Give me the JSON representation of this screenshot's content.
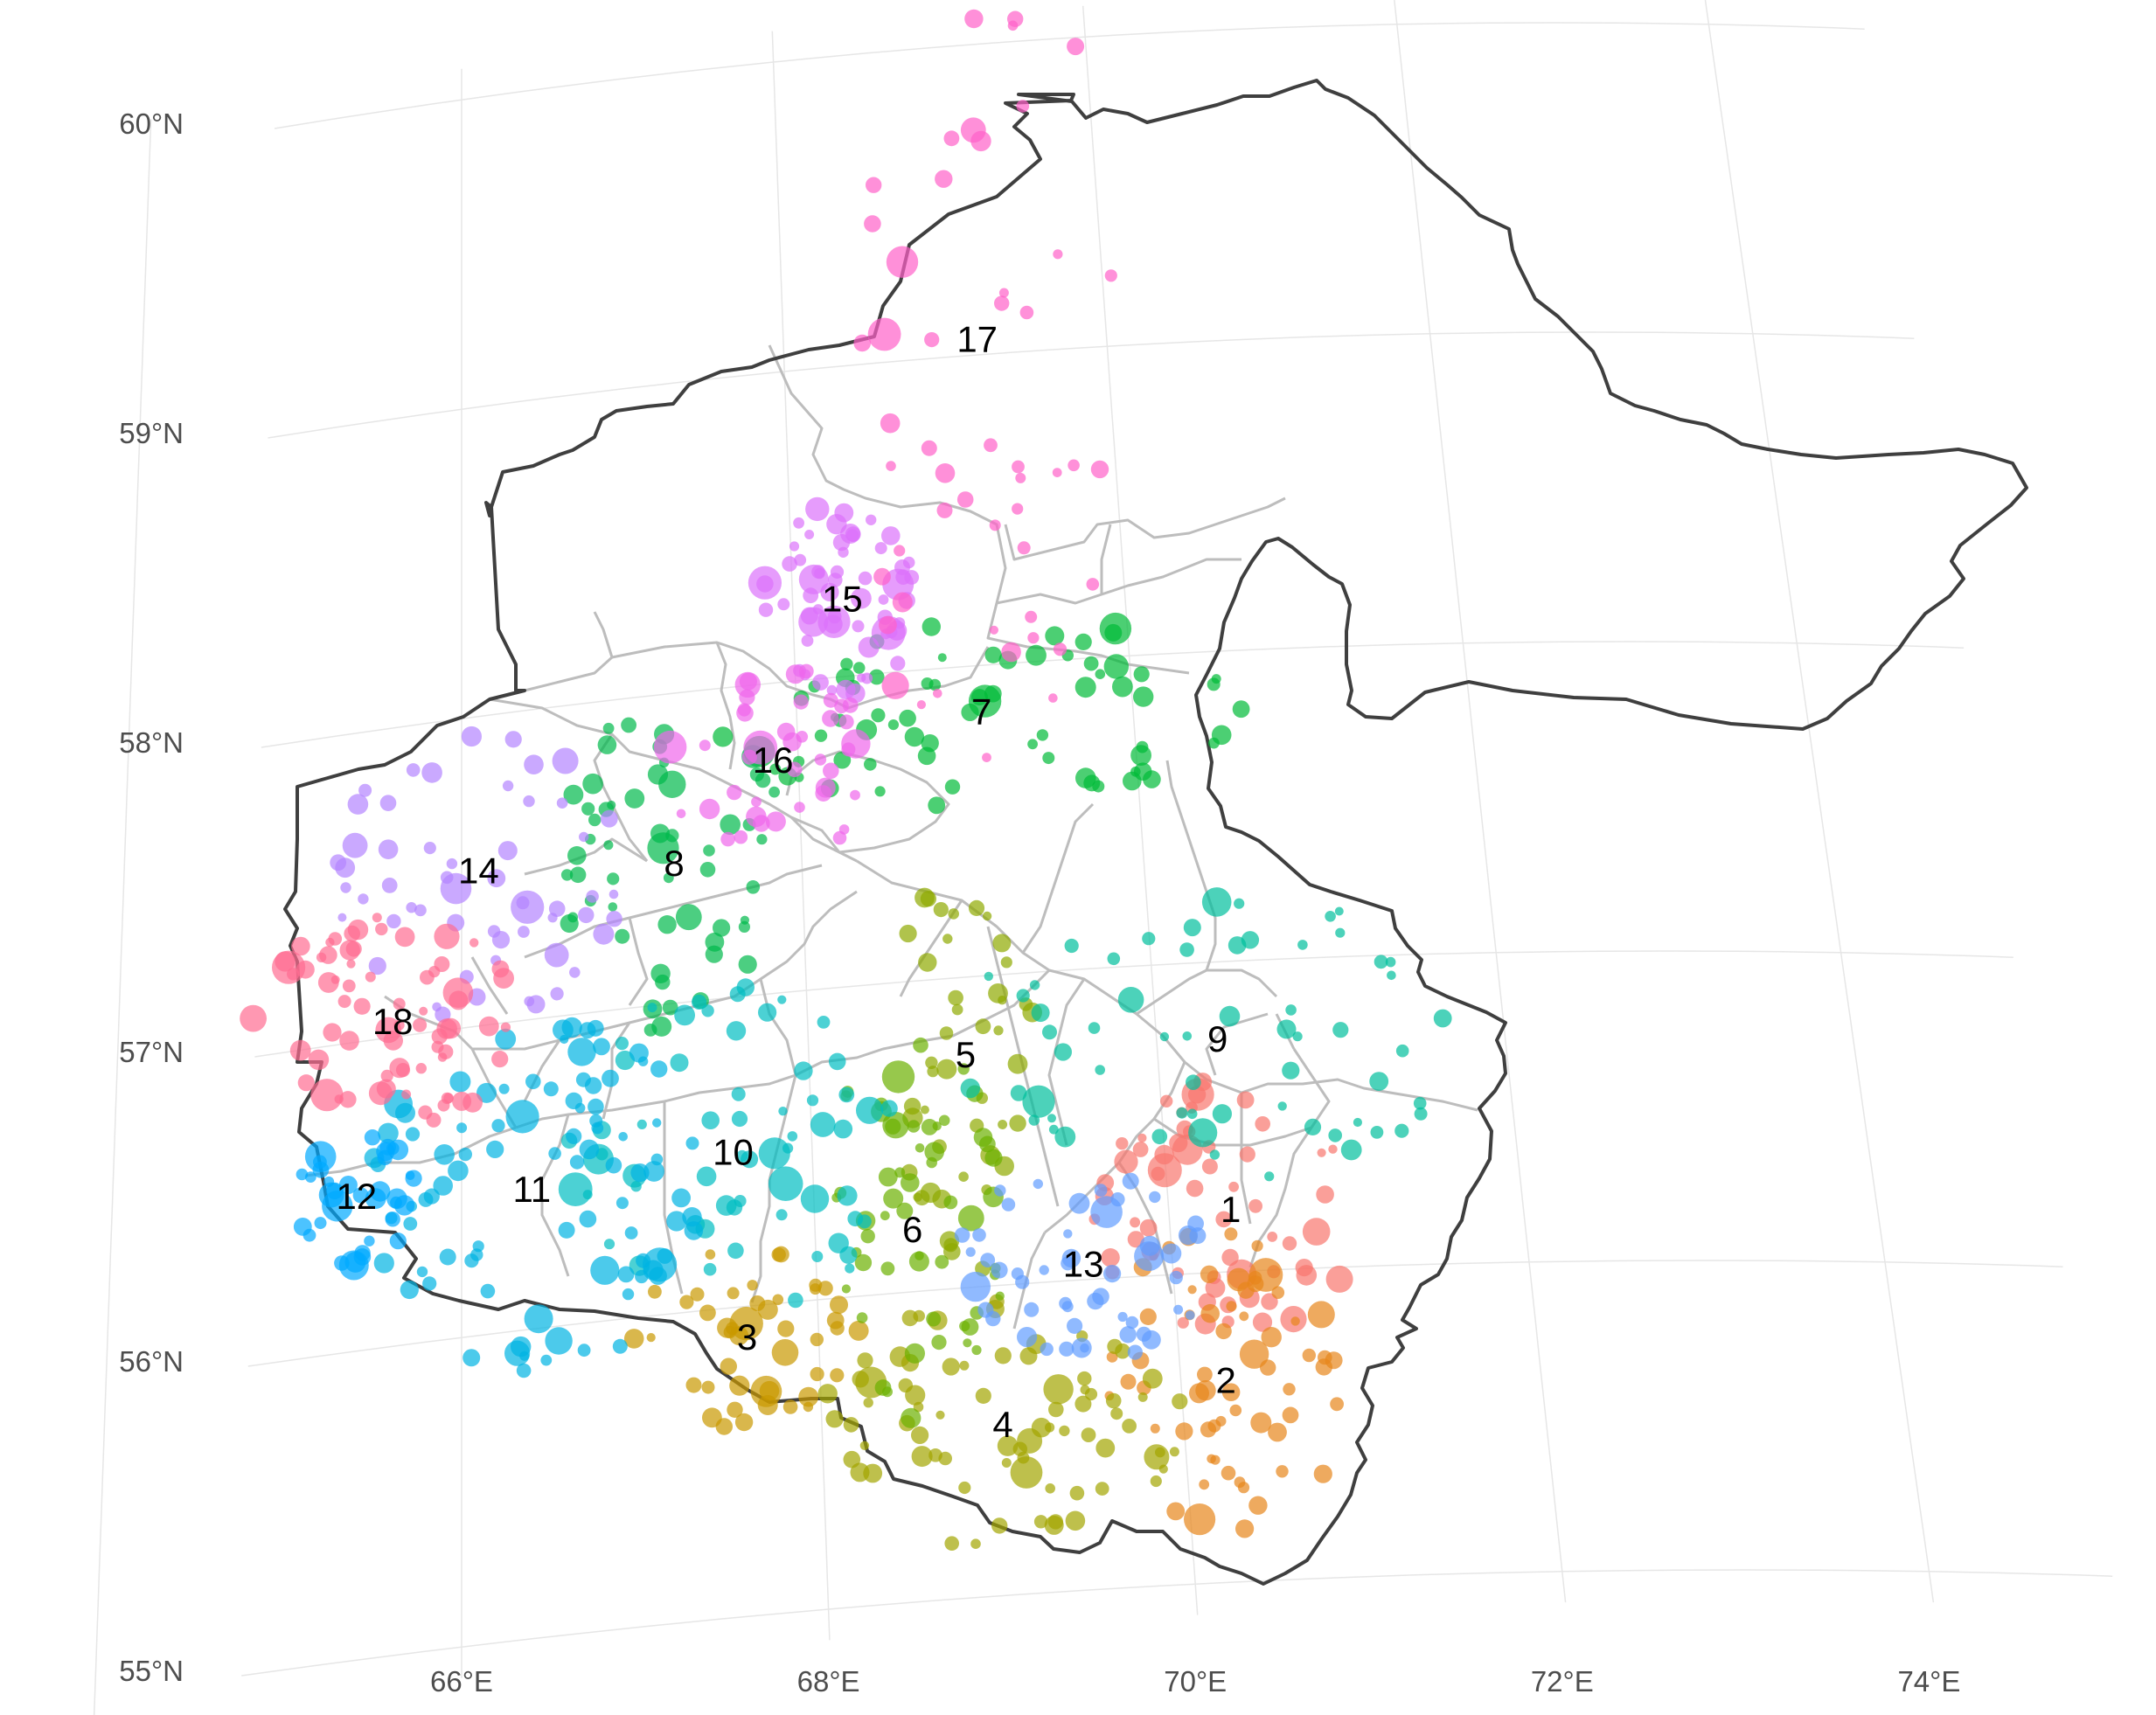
{
  "map": {
    "lat_ticks": [
      "60°N",
      "59°N",
      "58°N",
      "57°N",
      "56°N",
      "55°N"
    ],
    "lon_ticks": [
      "66°E",
      "68°E",
      "70°E",
      "72°E",
      "74°E"
    ],
    "grid": true,
    "clusters": [
      {
        "id": "1",
        "label": "1",
        "color": "#F8766D",
        "lon": 70.35,
        "lat": 56.2
      },
      {
        "id": "2",
        "label": "2",
        "color": "#E58700",
        "lon": 70.25,
        "lat": 55.65
      },
      {
        "id": "3",
        "label": "3",
        "color": "#C99800",
        "lon": 67.6,
        "lat": 55.9
      },
      {
        "id": "4",
        "label": "4",
        "color": "#A3A500",
        "lon": 69.0,
        "lat": 55.55
      },
      {
        "id": "5",
        "label": "5",
        "color": "#6BB100",
        "lon": 68.9,
        "lat": 56.75
      },
      {
        "id": "6",
        "label": "6",
        "color": "#00BA38",
        "lon": 68.55,
        "lat": 56.2
      },
      {
        "id": "7",
        "label": "7",
        "color": "#00BF7D",
        "lon": 69.1,
        "lat": 57.85
      },
      {
        "id": "8",
        "label": "8",
        "color": "#00C0AF",
        "lon": 67.25,
        "lat": 57.45
      },
      {
        "id": "9",
        "label": "9",
        "color": "#00BCD8",
        "lon": 70.35,
        "lat": 56.75
      },
      {
        "id": "10",
        "label": "10",
        "color": "#00B0F6",
        "lon": 67.55,
        "lat": 56.5
      },
      {
        "id": "11",
        "label": "11",
        "color": "#619CFF",
        "lon": 66.4,
        "lat": 56.45
      },
      {
        "id": "12",
        "label": "12",
        "color": "#B983FF",
        "lon": 65.4,
        "lat": 56.5
      },
      {
        "id": "13",
        "label": "13",
        "color": "#E76BF3",
        "lon": 69.5,
        "lat": 56.05
      },
      {
        "id": "14",
        "label": "14",
        "color": "#FD61D1",
        "lon": 66.1,
        "lat": 57.5
      },
      {
        "id": "15",
        "label": "15",
        "color": "#FF67A4",
        "lon": 68.3,
        "lat": 58.25
      },
      {
        "id": "16",
        "label": "16",
        "color": "#8494FF",
        "lon": 67.85,
        "lat": 57.75
      },
      {
        "id": "17",
        "label": "17",
        "color": "#00A9FF",
        "lon": 69.2,
        "lat": 59.05
      },
      {
        "id": "18",
        "label": "18",
        "color": "#F8766D",
        "lon": 65.6,
        "lat": 57.05
      }
    ],
    "cluster_colors": {
      "1": "#F8766D",
      "2": "#E7861B",
      "3": "#C99800",
      "4": "#A3A500",
      "5": "#8FAA00",
      "6": "#6BB100",
      "7": "#00BA38",
      "8": "#00B94B",
      "9": "#00BF9C",
      "10": "#00BDC2",
      "11": "#00B4E2",
      "12": "#00A9FF",
      "13": "#619CFF",
      "14": "#B385FF",
      "15": "#DB72FB",
      "16": "#EF67EB",
      "17": "#FF61C9",
      "18": "#FF6C91"
    }
  }
}
